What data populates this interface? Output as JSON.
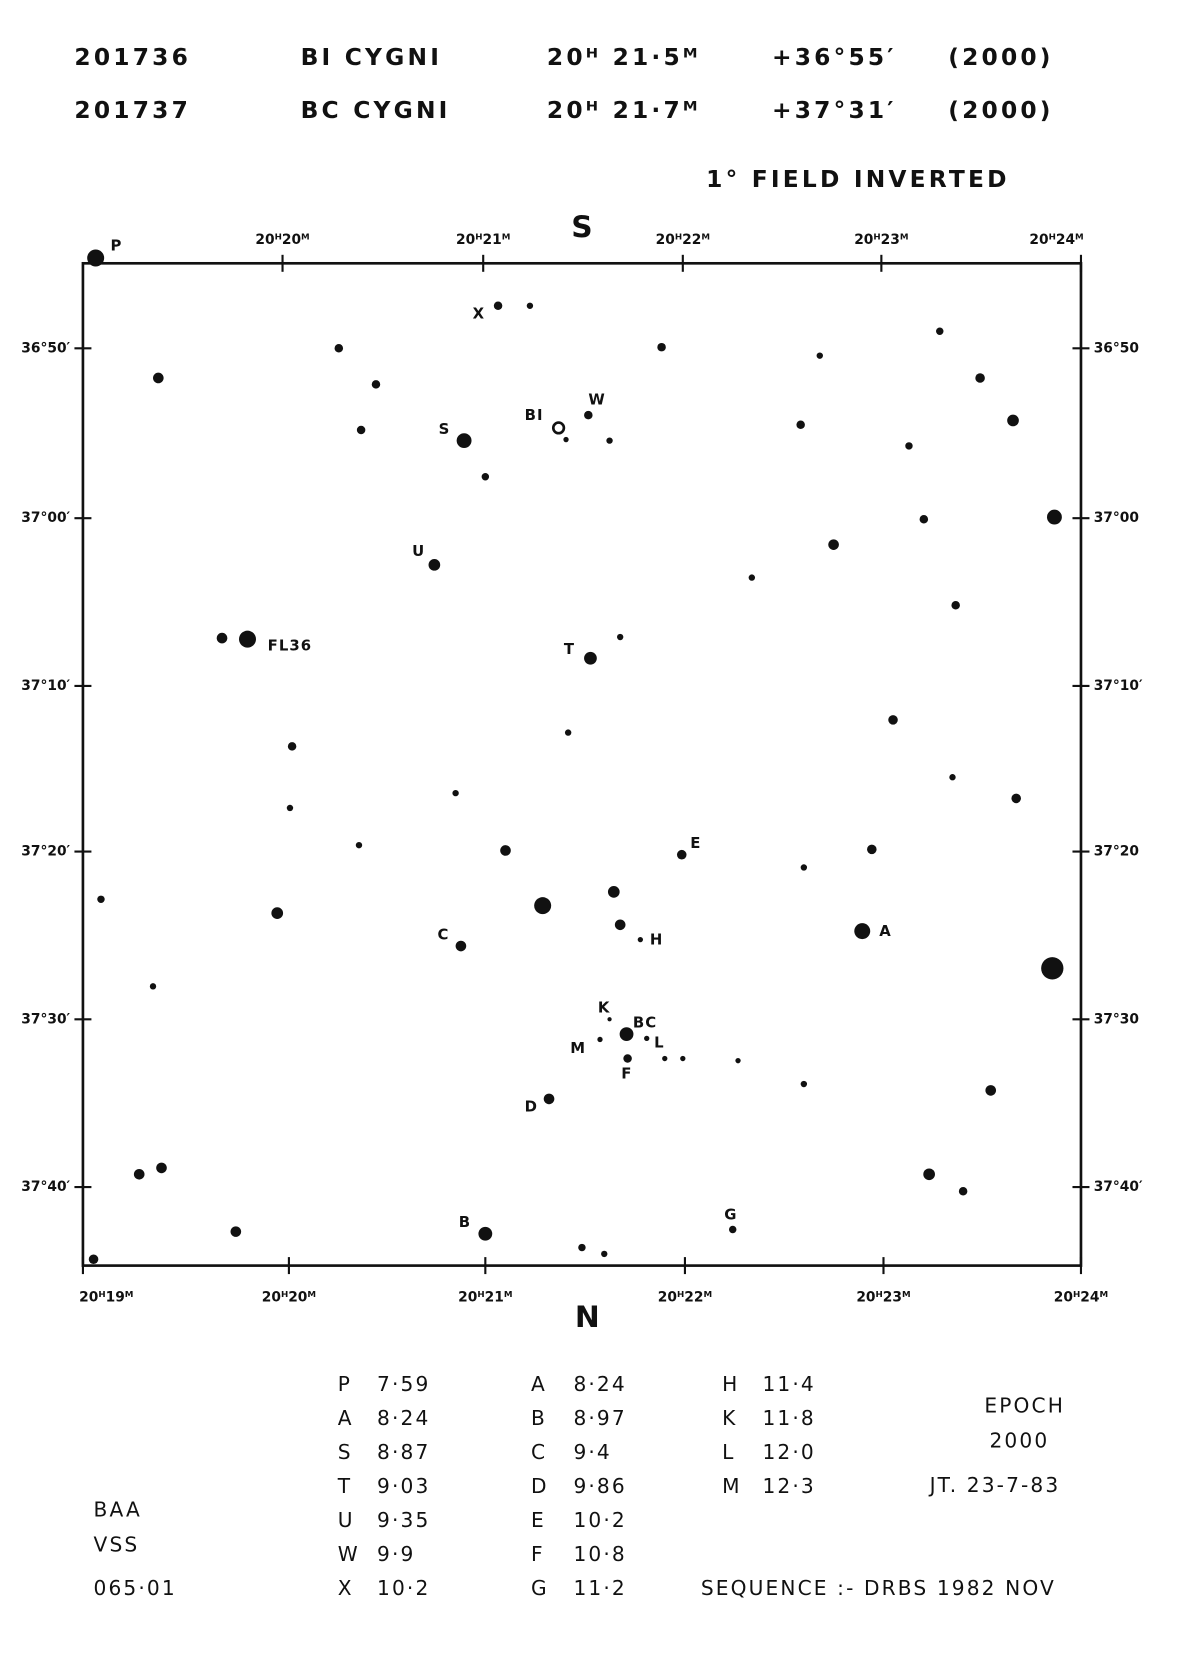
{
  "header": {
    "rows": [
      [
        "201736",
        "BI CYGNI",
        "20ᴴ 21·5ᴹ",
        "+36°55′",
        "(2000)"
      ],
      [
        "201737",
        "BC CYGNI",
        "20ᴴ 21·7ᴹ",
        "+37°31′",
        "(2000)"
      ]
    ],
    "field": "1° FIELD INVERTED"
  },
  "chart": {
    "top_label": "S",
    "bottom_label": "N",
    "top_ticks": [
      "20ᴴ20ᴹ",
      "20ᴴ21ᴹ",
      "20ᴴ22ᴹ",
      "20ᴴ23ᴹ",
      "20ᴴ24ᴹ"
    ],
    "bottom_ticks": [
      "20ᴴ19ᴹ",
      "20ᴴ20ᴹ",
      "20ᴴ21ᴹ",
      "20ᴴ22ᴹ",
      "20ᴴ23ᴹ",
      "20ᴴ24ᴹ"
    ],
    "left_ticks": [
      "36°50′",
      "37°00′",
      "37°10′",
      "37°20′",
      "37°30′",
      "37°40′"
    ],
    "right_ticks": [
      "36°50",
      "37°00",
      "37°10′",
      "37°20",
      "37°30",
      "37°40′"
    ],
    "star_labels": [
      "P",
      "S",
      "X",
      "BI",
      "W",
      "U",
      "FL36",
      "T",
      "E",
      "H",
      "A",
      "C",
      "K",
      "BC",
      "L",
      "M",
      "F",
      "D",
      "B",
      "G"
    ]
  },
  "sequence": {
    "columns": [
      [
        [
          "P",
          "7·59"
        ],
        [
          "A",
          "8·24"
        ],
        [
          "S",
          "8·87"
        ],
        [
          "T",
          "9·03"
        ],
        [
          "U",
          "9·35"
        ],
        [
          "W",
          "9·9"
        ],
        [
          "X",
          "10·2"
        ]
      ],
      [
        [
          "A",
          "8·24"
        ],
        [
          "B",
          "8·97"
        ],
        [
          "C",
          "9·4"
        ],
        [
          "D",
          "9·86"
        ],
        [
          "E",
          "10·2"
        ],
        [
          "F",
          "10·8"
        ],
        [
          "G",
          "11·2"
        ]
      ],
      [
        [
          "H",
          "11·4"
        ],
        [
          "K",
          "11·8"
        ],
        [
          "L",
          "12·0"
        ],
        [
          "M",
          "12·3"
        ]
      ]
    ]
  },
  "epoch": [
    "EPOCH",
    "2000",
    "JT. 23-7-83"
  ],
  "footer": {
    "id": [
      "BAA",
      "VSS",
      "065·01"
    ],
    "sequence_source": "SEQUENCE :- DRBS 1982 NOV"
  }
}
